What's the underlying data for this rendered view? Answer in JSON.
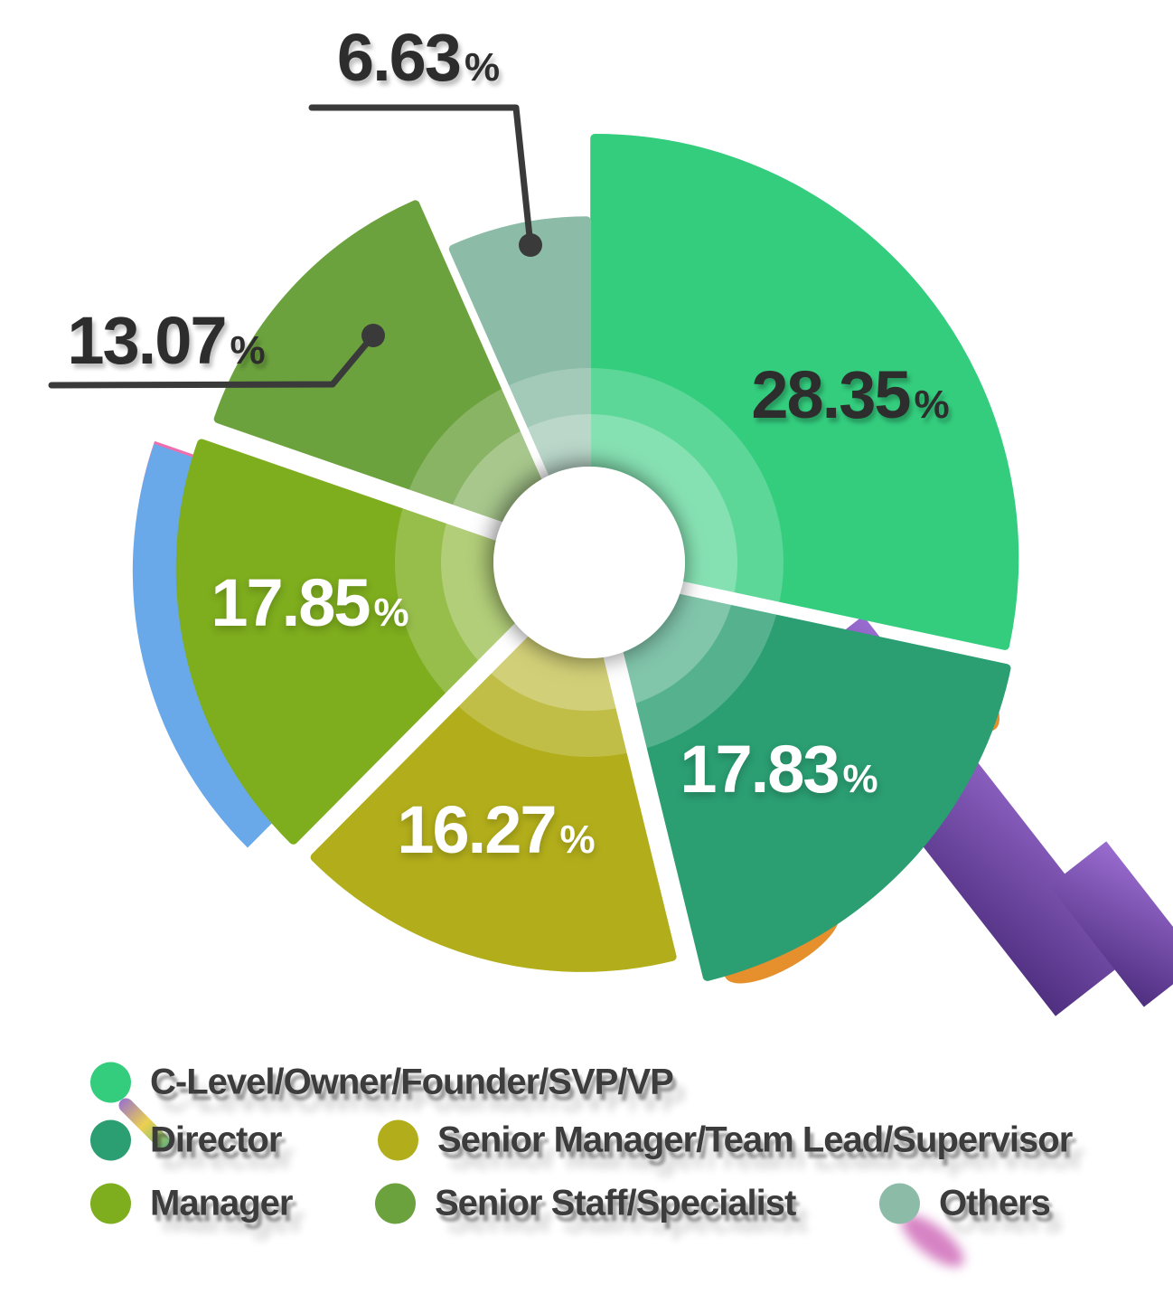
{
  "chart_data": {
    "type": "pie",
    "subtype": "exploded-donut",
    "unit": "%",
    "title": "",
    "legend_position": "bottom",
    "direction": "clockwise",
    "start_angle_deg": 0,
    "donut_hole": true,
    "callout_color": "#3a3a3a",
    "slices": [
      {
        "label": "C-Level/Owner/Founder/SVP/VP",
        "value": 28.35,
        "display": "28.35",
        "color": "#34cd7e",
        "text_color": "dark",
        "callout": false
      },
      {
        "label": "Director",
        "value": 17.83,
        "display": "17.83",
        "color": "#2b9e72",
        "text_color": "white",
        "callout": false
      },
      {
        "label": "Senior Manager/Team Lead/Supervisor",
        "value": 16.27,
        "display": "16.27",
        "color": "#b2ae1b",
        "text_color": "white",
        "callout": false
      },
      {
        "label": "Manager",
        "value": 17.85,
        "display": "17.85",
        "color": "#7ead1e",
        "text_color": "white",
        "callout": false
      },
      {
        "label": "Senior Staff/Specialist",
        "value": 13.07,
        "display": "13.07",
        "color": "#6ca23e",
        "text_color": "dark",
        "callout": true
      },
      {
        "label": "Others",
        "value": 6.63,
        "display": "6.63",
        "color": "#8cbca7",
        "text_color": "dark",
        "callout": true
      }
    ]
  },
  "legend": {
    "rows": [
      [
        0
      ],
      [
        1,
        2
      ],
      [
        3,
        4,
        5
      ]
    ]
  },
  "artifacts": {
    "blue": "#69a9e9",
    "pink": "#ef6fae",
    "purple_light": "#9a6cd0",
    "purple_dark": "#4f2f80",
    "orange": "#e5902d",
    "magenta": "#c95ab0",
    "rainbow": [
      "#8a5cc0",
      "#e8c832",
      "#4fae6e"
    ]
  }
}
